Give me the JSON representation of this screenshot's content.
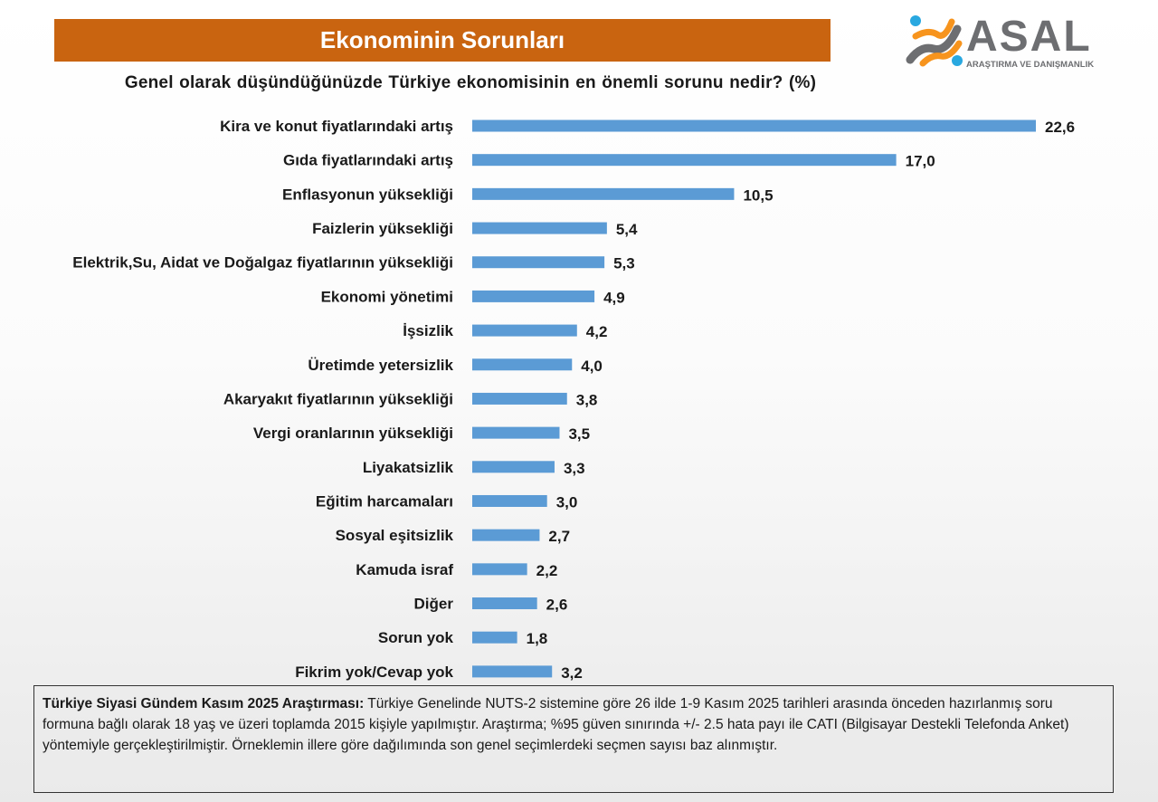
{
  "header": {
    "title": "Ekonominin Sorunları",
    "subtitle": "Genel olarak düşündüğünüzde  Türkiye ekonomisinin  en önemli sorunu nedir? (%)"
  },
  "logo": {
    "text": "ASAL",
    "tagline": "ARAŞTIRMA VE DANIŞMANLIK"
  },
  "colors": {
    "title_bar": "#c96410",
    "bar": "#5b9bd5",
    "logo_orange": "#f7941d",
    "logo_blue": "#29a8e0",
    "logo_gray": "#6d6e71"
  },
  "chart_data": {
    "type": "bar",
    "orientation": "horizontal",
    "categories": [
      "Kira ve konut fiyatlarındaki artış",
      "Gıda fiyatlarındaki artış",
      "Enflasyonun yüksekliği",
      "Faizlerin yüksekliği",
      "Elektrik,Su, Aidat ve Doğalgaz fiyatlarının yüksekliği",
      "Ekonomi yönetimi",
      "İşsizlik",
      "Üretimde yetersizlik",
      "Akaryakıt fiyatlarının yüksekliği",
      "Vergi oranlarının yüksekliği",
      "Liyakatsizlik",
      "Eğitim harcamaları",
      "Sosyal eşitsizlik",
      "Kamuda israf",
      "Diğer",
      "Sorun yok",
      "Fikrim yok/Cevap yok"
    ],
    "values": [
      22.6,
      17.0,
      10.5,
      5.4,
      5.3,
      4.9,
      4.2,
      4.0,
      3.8,
      3.5,
      3.3,
      3.0,
      2.7,
      2.2,
      2.6,
      1.8,
      3.2
    ],
    "data_labels": [
      "22,6",
      "17,0",
      "10,5",
      "5,4",
      "5,3",
      "4,9",
      "4,2",
      "4,0",
      "3,8",
      "3,5",
      "3,3",
      "3,0",
      "2,7",
      "2,2",
      "2,6",
      "1,8",
      "3,2"
    ],
    "title": "Genel olarak düşündüğünüzde  Türkiye ekonomisinin  en önemli sorunu nedir? (%)",
    "xlabel": "",
    "ylabel": "",
    "grid": false,
    "legend": "none"
  },
  "footer": {
    "bold": "Türkiye Siyasi Gündem Kasım 2025 Araştırması:",
    "text": " Türkiye Genelinde  NUTS-2 sistemine göre 26 ilde 1-9 Kasım 2025 tarihleri arasında önceden  hazırlanmış soru formuna bağlı olarak  18 yaş ve üzeri toplamda 2015 kişiyle yapılmıştır. Araştırma; %95 güven sınırında +/- 2.5 hata payı ile CATI (Bilgisayar Destekli Telefonda  Anket)  yöntemiyle gerçekleştirilmiştir. Örneklemin illere göre dağılımında son genel  seçimlerdeki  seçmen sayısı baz alınmıştır."
  }
}
